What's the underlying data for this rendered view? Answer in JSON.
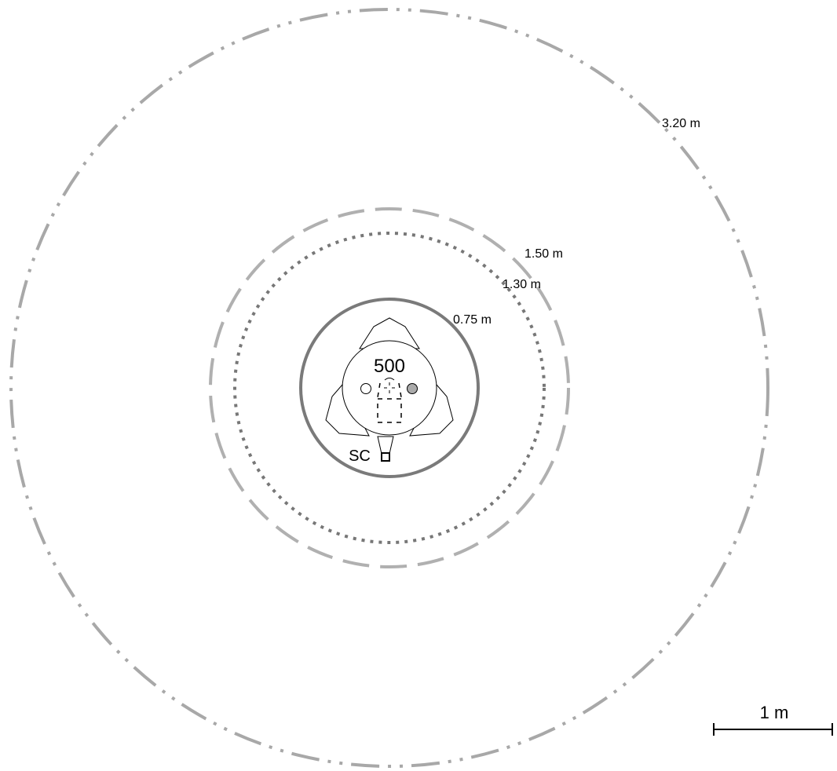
{
  "rings": [
    {
      "id": "ring-320",
      "radius_m": 3.2,
      "label": "3.20 m",
      "style": "dash-dot-dot",
      "color": "#a8a8a8"
    },
    {
      "id": "ring-150",
      "radius_m": 1.5,
      "label": "1.50 m",
      "style": "long-dash",
      "color": "#b0b0b0"
    },
    {
      "id": "ring-130",
      "radius_m": 1.3,
      "label": "1.30 m",
      "style": "dotted",
      "color": "#777777"
    },
    {
      "id": "ring-075",
      "radius_m": 0.75,
      "label": "0.75 m",
      "style": "solid",
      "color": "#7a7a7a"
    }
  ],
  "device": {
    "label": "500",
    "sensor_label": "SC",
    "left_marker_color": "#ffffff",
    "right_marker_color": "#aaaaaa"
  },
  "scale_bar": {
    "label": "1 m",
    "length_m": 1
  }
}
